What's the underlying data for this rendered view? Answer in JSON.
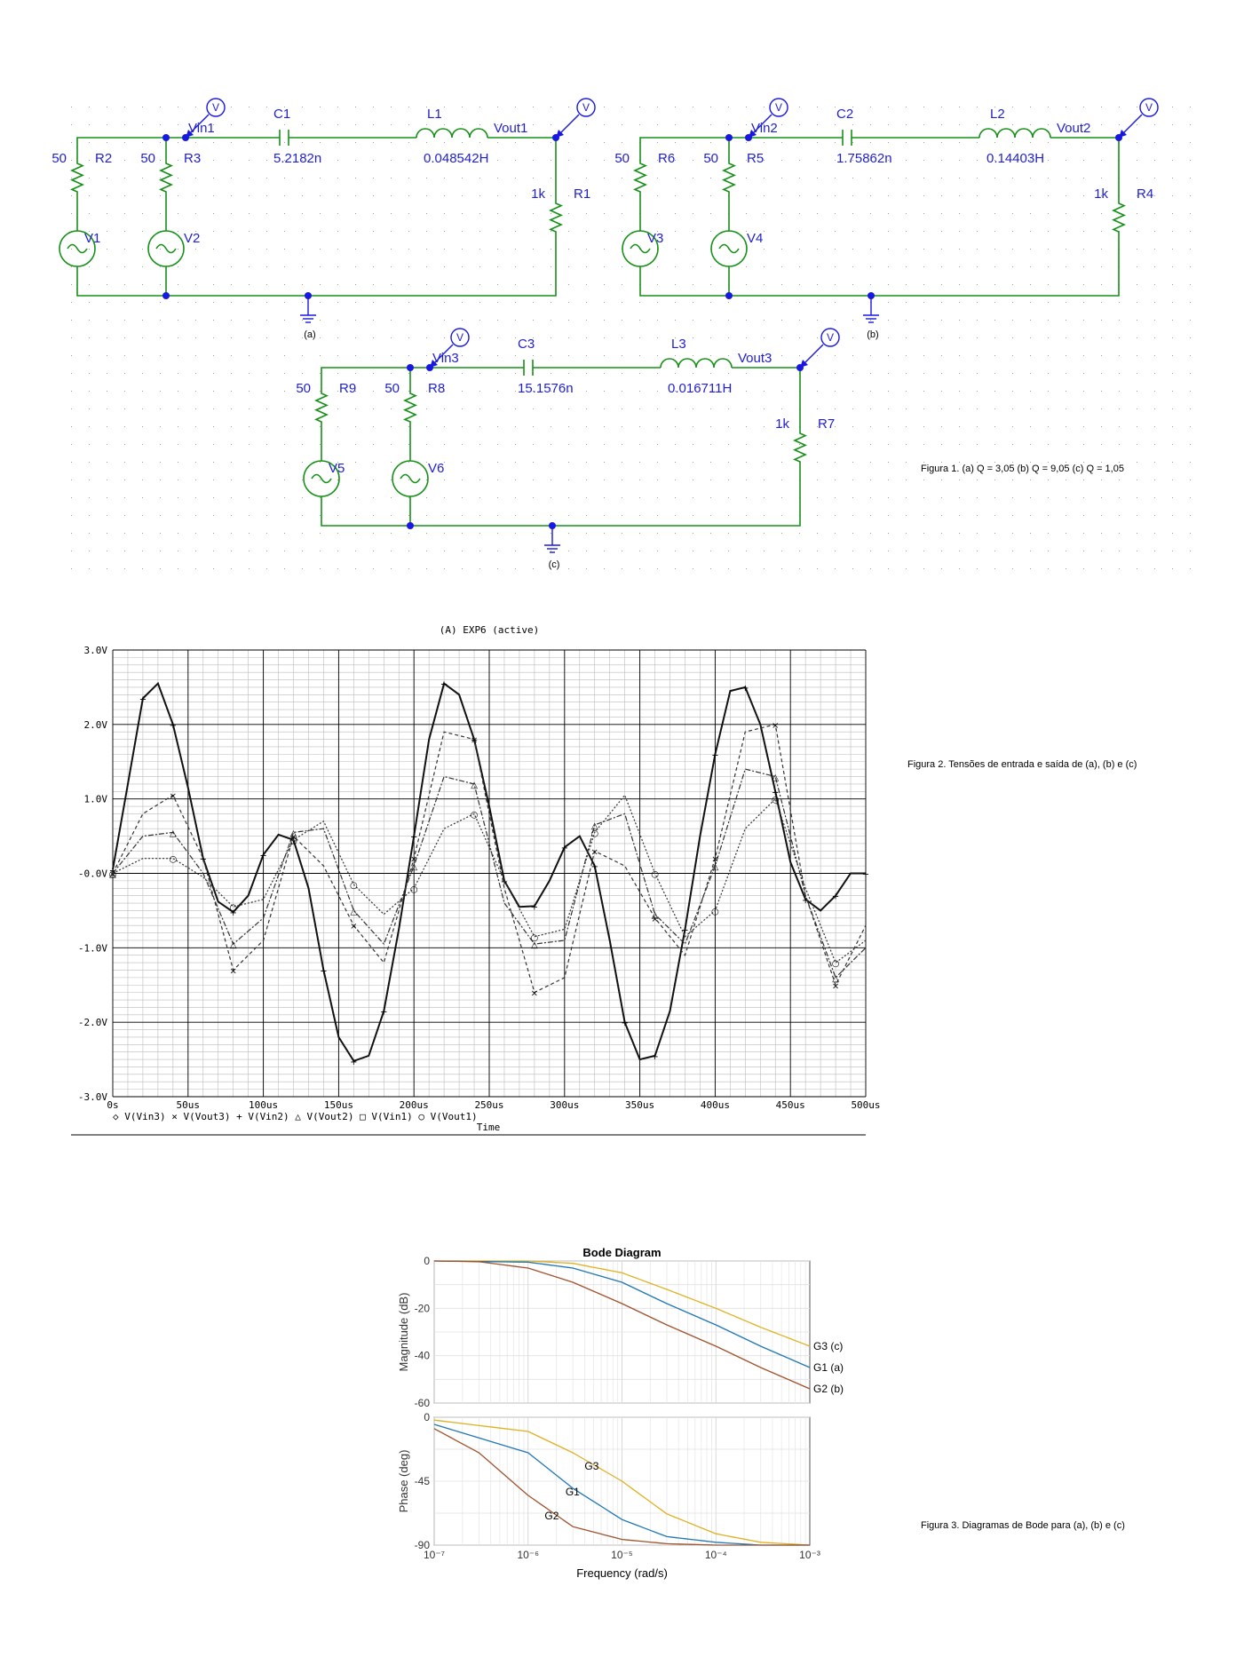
{
  "schematics": [
    {
      "id": "a",
      "caption": "(a)",
      "r_src1": {
        "name": "R2",
        "value": "50"
      },
      "r_src2": {
        "name": "R3",
        "value": "50"
      },
      "v1": "V1",
      "v2": "V2",
      "vin": "Vin1",
      "cap": {
        "name": "C1",
        "value": "5.2182n"
      },
      "ind": {
        "name": "L1",
        "value": "0.048542H"
      },
      "vout": "Vout1",
      "r_load": {
        "name": "R1",
        "value": "1k"
      }
    },
    {
      "id": "b",
      "caption": "(b)",
      "r_src1": {
        "name": "R6",
        "value": "50"
      },
      "r_src2": {
        "name": "R5",
        "value": "50"
      },
      "v1": "V3",
      "v2": "V4",
      "vin": "Vin2",
      "cap": {
        "name": "C2",
        "value": "1.75862n"
      },
      "ind": {
        "name": "L2",
        "value": "0.14403H"
      },
      "vout": "Vout2",
      "r_load": {
        "name": "R4",
        "value": "1k"
      }
    },
    {
      "id": "c",
      "caption": "(c)",
      "r_src1": {
        "name": "R9",
        "value": "50"
      },
      "r_src2": {
        "name": "R8",
        "value": "50"
      },
      "v1": "V5",
      "v2": "V6",
      "vin": "Vin3",
      "cap": {
        "name": "C3",
        "value": "15.1576n"
      },
      "ind": {
        "name": "L3",
        "value": "0.016711H"
      },
      "vout": "Vout3",
      "r_load": {
        "name": "R7",
        "value": "1k"
      }
    }
  ],
  "probe_letter": "V",
  "captions": {
    "fig1": "Figura 1. (a) Q = 3,05  (b) Q = 9,05  (c) Q = 1,05",
    "fig2": "Figura 2. Tensões de entrada e saída de (a), (b) e (c)",
    "fig3": "Figura 3. Diagramas de Bode para (a), (b) e (c)"
  },
  "transient": {
    "title": "(A) EXP6 (active)",
    "y_ticks": [
      "3.0V",
      "2.0V",
      "1.0V",
      "-0.0V",
      "-1.0V",
      "-2.0V",
      "-3.0V"
    ],
    "x_ticks": [
      "0s",
      "50us",
      "100us",
      "150us",
      "200us",
      "250us",
      "300us",
      "350us",
      "400us",
      "450us",
      "500us"
    ],
    "x_label": "Time",
    "legend": "◇ V(Vin3)  × V(Vout3)  + V(Vin2)  △ V(Vout2)  □ V(Vin1)  ○ V(Vout1)"
  },
  "chart_data": [
    {
      "type": "line",
      "title": "(A) EXP6 (active)",
      "xlabel": "Time",
      "x_unit": "us",
      "ylim": [
        -3.0,
        3.0
      ],
      "xlim": [
        0,
        500
      ],
      "series": [
        {
          "name": "V(Vin2)",
          "x": [
            0,
            10,
            20,
            30,
            40,
            50,
            60,
            70,
            80,
            90,
            100,
            110,
            120,
            130,
            140,
            150,
            160,
            170,
            180,
            190,
            200,
            210,
            220,
            230,
            240,
            250,
            260,
            270,
            280,
            290,
            300,
            310,
            320,
            330,
            340,
            350,
            360,
            370,
            380,
            390,
            400,
            410,
            420,
            430,
            440,
            450,
            460,
            470,
            480,
            490,
            500
          ],
          "y": [
            0.05,
            1.2,
            2.35,
            2.55,
            2.0,
            1.15,
            0.2,
            -0.38,
            -0.52,
            -0.3,
            0.25,
            0.52,
            0.45,
            -0.2,
            -1.3,
            -2.2,
            -2.52,
            -2.45,
            -1.85,
            -0.75,
            0.5,
            1.8,
            2.55,
            2.4,
            1.8,
            0.9,
            -0.1,
            -0.45,
            -0.44,
            -0.1,
            0.35,
            0.5,
            0.1,
            -0.9,
            -2.0,
            -2.5,
            -2.45,
            -1.85,
            -0.75,
            0.5,
            1.6,
            2.45,
            2.5,
            2.0,
            1.1,
            0.15,
            -0.35,
            -0.5,
            -0.3,
            0.0,
            0.0
          ]
        },
        {
          "name": "V(Vout3)",
          "x": [
            0,
            20,
            40,
            60,
            80,
            100,
            120,
            140,
            160,
            180,
            200,
            220,
            240,
            260,
            280,
            300,
            320,
            340,
            360,
            380,
            400,
            420,
            440,
            460,
            480,
            500
          ],
          "y": [
            0.0,
            0.8,
            1.05,
            0.2,
            -1.3,
            -0.9,
            0.5,
            0.1,
            -0.7,
            -1.2,
            0.2,
            1.9,
            1.8,
            -0.2,
            -1.6,
            -1.4,
            0.3,
            0.1,
            -0.6,
            -1.1,
            0.2,
            1.9,
            2.0,
            -0.3,
            -1.5,
            -0.7
          ]
        },
        {
          "name": "V(Vout2)",
          "x": [
            0,
            20,
            40,
            60,
            80,
            100,
            120,
            140,
            160,
            180,
            200,
            220,
            240,
            260,
            280,
            300,
            320,
            340,
            360,
            380,
            400,
            420,
            440,
            460,
            480,
            500
          ],
          "y": [
            0.0,
            0.5,
            0.55,
            0.0,
            -0.95,
            -0.6,
            0.55,
            0.6,
            -0.5,
            -0.95,
            0.1,
            1.3,
            1.2,
            -0.4,
            -0.95,
            -0.9,
            0.65,
            0.8,
            -0.55,
            -0.95,
            0.1,
            1.4,
            1.3,
            -0.3,
            -1.4,
            -1.0
          ]
        },
        {
          "name": "V(Vout1)",
          "x": [
            0,
            20,
            40,
            60,
            80,
            100,
            120,
            140,
            160,
            180,
            200,
            220,
            240,
            260,
            280,
            300,
            320,
            340,
            360,
            380,
            400,
            420,
            440,
            460,
            480,
            500
          ],
          "y": [
            0.0,
            0.2,
            0.2,
            -0.05,
            -0.45,
            -0.35,
            0.45,
            0.7,
            -0.15,
            -0.55,
            -0.2,
            0.6,
            0.8,
            -0.1,
            -0.85,
            -0.75,
            0.55,
            1.05,
            0.0,
            -0.85,
            -0.5,
            0.6,
            1.0,
            -0.2,
            -1.2,
            -0.9
          ]
        }
      ]
    },
    {
      "type": "line",
      "title": "Bode Diagram",
      "xlabel": "Frequency  (rad/s)",
      "ylabel": "Magnitude (dB)",
      "x_scale": "log",
      "xlim": [
        1e-07,
        0.001
      ],
      "ylim": [
        -60,
        0
      ],
      "y_ticks": [
        "0",
        "-20",
        "-40",
        "-60"
      ],
      "series": [
        {
          "name": "G3 (c)",
          "color": "#e0b020",
          "x": [
            1e-07,
            1e-06,
            3e-06,
            1e-05,
            3e-05,
            0.0001,
            0.0003,
            0.001
          ],
          "y": [
            0,
            0,
            -1,
            -5,
            -12,
            -20,
            -28,
            -36
          ]
        },
        {
          "name": "G1 (a)",
          "color": "#1f77b4",
          "x": [
            1e-07,
            1e-06,
            3e-06,
            1e-05,
            3e-05,
            0.0001,
            0.0003,
            0.001
          ],
          "y": [
            0,
            -0.5,
            -3,
            -9,
            -18,
            -27,
            -36,
            -45
          ]
        },
        {
          "name": "G2 (b)",
          "color": "#a0522d",
          "x": [
            1e-07,
            3e-07,
            1e-06,
            3e-06,
            1e-05,
            3e-05,
            0.0001,
            0.0003,
            0.001
          ],
          "y": [
            0,
            -0.3,
            -3,
            -9,
            -18,
            -27,
            -36,
            -45,
            -54
          ]
        }
      ]
    },
    {
      "type": "line",
      "title": "",
      "xlabel": "Frequency  (rad/s)",
      "ylabel": "Phase (deg)",
      "x_scale": "log",
      "xlim": [
        1e-07,
        0.001
      ],
      "ylim": [
        -90,
        0
      ],
      "y_ticks": [
        "0",
        "-45",
        "-90"
      ],
      "x_ticks": [
        "10⁻⁷",
        "10⁻⁶",
        "10⁻⁵",
        "10⁻⁴",
        "10⁻³"
      ],
      "series": [
        {
          "name": "G3",
          "color": "#e0b020",
          "x": [
            1e-07,
            1e-06,
            3e-06,
            1e-05,
            3e-05,
            0.0001,
            0.0003,
            0.001
          ],
          "y": [
            -2,
            -10,
            -25,
            -45,
            -68,
            -82,
            -88,
            -90
          ]
        },
        {
          "name": "G1",
          "color": "#1f77b4",
          "x": [
            1e-07,
            1e-06,
            3e-06,
            1e-05,
            3e-05,
            0.0001,
            0.0003,
            0.001
          ],
          "y": [
            -5,
            -25,
            -50,
            -72,
            -84,
            -88,
            -90,
            -90
          ]
        },
        {
          "name": "G2",
          "color": "#a0522d",
          "x": [
            1e-07,
            3e-07,
            1e-06,
            3e-06,
            1e-05,
            3e-05,
            0.0001,
            0.001
          ],
          "y": [
            -8,
            -25,
            -55,
            -77,
            -86,
            -89,
            -90,
            -90
          ]
        }
      ]
    }
  ]
}
